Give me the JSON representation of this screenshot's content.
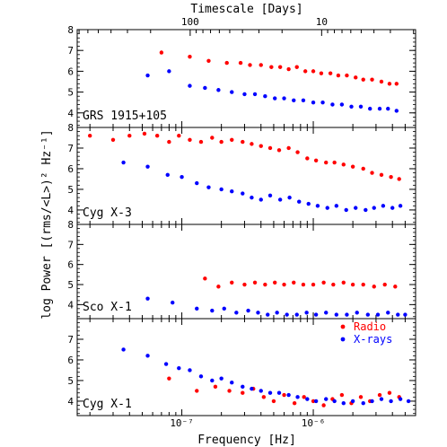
{
  "chart_data": {
    "type": "scatter",
    "xlabel": "Frequency [Hz]",
    "ylabel": "log Power [(rms/<L>)² Hz⁻¹]",
    "x_scale": "log",
    "xlim": [
      1.6e-08,
      6e-06
    ],
    "x_ticks": [
      {
        "value": 1e-07,
        "label": "10⁻⁷"
      },
      {
        "value": 1e-06,
        "label": "10⁻⁶"
      }
    ],
    "top_axis": {
      "label": "Timescale [Days]",
      "ticks": [
        {
          "value": 100,
          "label": "100"
        },
        {
          "value": 10,
          "label": "10"
        }
      ]
    },
    "legend": {
      "placement": "top-right of bottom panel",
      "entries": [
        {
          "name": "Radio",
          "color": "#ff0000"
        },
        {
          "name": "X-rays",
          "color": "#0000ff"
        }
      ]
    },
    "colors": {
      "radio": "#ff0000",
      "xrays": "#0000ff"
    },
    "panels": [
      {
        "label": "GRS 1915+105",
        "ylim": [
          3.3,
          8
        ],
        "y_ticks": [
          4,
          5,
          6,
          7,
          8
        ],
        "series": [
          {
            "name": "Radio",
            "color": "#ff0000",
            "x": [
              7e-08,
              1.15e-07,
              1.6e-07,
              2.2e-07,
              2.8e-07,
              3.3e-07,
              4e-07,
              4.8e-07,
              5.6e-07,
              6.5e-07,
              7.5e-07,
              8.7e-07,
              1e-06,
              1.15e-06,
              1.35e-06,
              1.55e-06,
              1.8e-06,
              2.1e-06,
              2.4e-06,
              2.8e-06,
              3.3e-06,
              3.8e-06,
              4.3e-06
            ],
            "y": [
              6.9,
              6.7,
              6.5,
              6.4,
              6.4,
              6.3,
              6.3,
              6.2,
              6.2,
              6.1,
              6.2,
              6.0,
              6.0,
              5.9,
              5.9,
              5.8,
              5.8,
              5.7,
              5.6,
              5.6,
              5.5,
              5.4,
              5.4
            ]
          },
          {
            "name": "X-rays",
            "color": "#0000ff",
            "x": [
              5.5e-08,
              8e-08,
              1.15e-07,
              1.5e-07,
              1.9e-07,
              2.4e-07,
              3e-07,
              3.6e-07,
              4.3e-07,
              5.1e-07,
              6e-07,
              7.1e-07,
              8.4e-07,
              1e-06,
              1.18e-06,
              1.4e-06,
              1.65e-06,
              1.95e-06,
              2.3e-06,
              2.7e-06,
              3.2e-06,
              3.7e-06,
              4.3e-06
            ],
            "y": [
              5.8,
              6.0,
              5.3,
              5.2,
              5.1,
              5.0,
              4.9,
              4.9,
              4.8,
              4.7,
              4.7,
              4.6,
              4.6,
              4.5,
              4.5,
              4.4,
              4.4,
              4.3,
              4.3,
              4.2,
              4.2,
              4.2,
              4.1
            ]
          }
        ]
      },
      {
        "label": "Cyg X-3",
        "ylim": [
          3.3,
          8
        ],
        "y_ticks": [
          4,
          5,
          6,
          7,
          8
        ],
        "series": [
          {
            "name": "Radio",
            "color": "#ff0000",
            "x": [
              2e-08,
              3e-08,
              4e-08,
              5.2e-08,
              6.5e-08,
              8e-08,
              9.5e-08,
              1.15e-07,
              1.4e-07,
              1.7e-07,
              2e-07,
              2.4e-07,
              2.9e-07,
              3.4e-07,
              4e-07,
              4.7e-07,
              5.5e-07,
              6.5e-07,
              7.6e-07,
              9e-07,
              1.05e-06,
              1.25e-06,
              1.45e-06,
              1.7e-06,
              2e-06,
              2.4e-06,
              2.8e-06,
              3.3e-06,
              3.9e-06,
              4.5e-06
            ],
            "y": [
              7.6,
              7.4,
              7.6,
              7.7,
              7.6,
              7.3,
              7.6,
              7.4,
              7.3,
              7.5,
              7.3,
              7.4,
              7.3,
              7.2,
              7.1,
              7.0,
              6.9,
              7.0,
              6.8,
              6.5,
              6.4,
              6.3,
              6.3,
              6.2,
              6.1,
              6.0,
              5.8,
              5.7,
              5.6,
              5.5
            ]
          },
          {
            "name": "X-rays",
            "color": "#0000ff",
            "x": [
              3.6e-08,
              5.5e-08,
              7.8e-08,
              1e-07,
              1.3e-07,
              1.6e-07,
              2e-07,
              2.4e-07,
              2.9e-07,
              3.4e-07,
              4e-07,
              4.7e-07,
              5.6e-07,
              6.6e-07,
              7.8e-07,
              9.2e-07,
              1.08e-06,
              1.28e-06,
              1.5e-06,
              1.78e-06,
              2.1e-06,
              2.5e-06,
              2.9e-06,
              3.4e-06,
              4e-06,
              4.6e-06
            ],
            "y": [
              6.3,
              6.1,
              5.7,
              5.6,
              5.3,
              5.1,
              5.0,
              4.9,
              4.8,
              4.6,
              4.5,
              4.7,
              4.5,
              4.6,
              4.4,
              4.3,
              4.2,
              4.1,
              4.2,
              4.0,
              4.1,
              4.0,
              4.1,
              4.2,
              4.1,
              4.2
            ]
          }
        ]
      },
      {
        "label": "Sco X-1",
        "ylim": [
          3.3,
          8
        ],
        "y_ticks": [
          4,
          5,
          6,
          7,
          8
        ],
        "series": [
          {
            "name": "Radio",
            "color": "#ff0000",
            "x": [
              1.5e-07,
              1.9e-07,
              2.4e-07,
              3e-07,
              3.6e-07,
              4.3e-07,
              5.1e-07,
              6e-07,
              7.1e-07,
              8.4e-07,
              1e-06,
              1.2e-06,
              1.42e-06,
              1.7e-06,
              2e-06,
              2.4e-06,
              2.9e-06,
              3.5e-06,
              4.2e-06
            ],
            "y": [
              5.3,
              4.9,
              5.1,
              5.0,
              5.1,
              5.0,
              5.1,
              5.0,
              5.1,
              5.0,
              5.0,
              5.1,
              5.0,
              5.1,
              5.0,
              5.0,
              4.9,
              5.0,
              4.9
            ]
          },
          {
            "name": "X-rays",
            "color": "#0000ff",
            "x": [
              5.5e-08,
              8.5e-08,
              1.3e-07,
              1.7e-07,
              2.1e-07,
              2.6e-07,
              3.2e-07,
              3.8e-07,
              4.5e-07,
              5.3e-07,
              6.3e-07,
              7.5e-07,
              8.9e-07,
              1.05e-06,
              1.25e-06,
              1.5e-06,
              1.8e-06,
              2.15e-06,
              2.6e-06,
              3.1e-06,
              3.7e-06,
              4.4e-06,
              5e-06
            ],
            "y": [
              4.3,
              4.1,
              3.8,
              3.7,
              3.8,
              3.6,
              3.7,
              3.6,
              3.5,
              3.6,
              3.5,
              3.5,
              3.6,
              3.5,
              3.6,
              3.5,
              3.5,
              3.6,
              3.5,
              3.5,
              3.6,
              3.5,
              3.5
            ]
          }
        ]
      },
      {
        "label": "Cyg X-1",
        "ylim": [
          3.3,
          8
        ],
        "y_ticks": [
          4,
          5,
          6,
          7
        ],
        "series": [
          {
            "name": "Radio",
            "color": "#ff0000",
            "x": [
              8e-08,
              1.3e-07,
              1.8e-07,
              2.3e-07,
              2.9e-07,
              3.5e-07,
              4.2e-07,
              5e-07,
              6e-07,
              7.2e-07,
              8.5e-07,
              1e-06,
              1.2e-06,
              1.4e-06,
              1.65e-06,
              1.95e-06,
              2.3e-06,
              2.7e-06,
              3.2e-06,
              3.8e-06,
              4.5e-06
            ],
            "y": [
              5.1,
              4.5,
              4.7,
              4.5,
              4.4,
              4.6,
              4.2,
              4.0,
              4.3,
              3.9,
              4.2,
              4.0,
              3.8,
              4.1,
              4.3,
              3.9,
              4.2,
              4.0,
              4.3,
              4.4,
              4.2
            ]
          },
          {
            "name": "X-rays",
            "color": "#0000ff",
            "x": [
              3.6e-08,
              5.5e-08,
              7.6e-08,
              9.5e-08,
              1.15e-07,
              1.4e-07,
              1.7e-07,
              2e-07,
              2.4e-07,
              2.9e-07,
              3.4e-07,
              4e-07,
              4.7e-07,
              5.5e-07,
              6.5e-07,
              7.6e-07,
              9e-07,
              1.05e-06,
              1.25e-06,
              1.45e-06,
              1.7e-06,
              2e-06,
              2.4e-06,
              2.8e-06,
              3.3e-06,
              3.9e-06,
              4.6e-06,
              5.3e-06
            ],
            "y": [
              6.5,
              6.2,
              5.8,
              5.6,
              5.5,
              5.2,
              5.0,
              5.1,
              4.9,
              4.7,
              4.6,
              4.5,
              4.4,
              4.4,
              4.3,
              4.2,
              4.1,
              4.0,
              4.1,
              4.0,
              3.9,
              4.0,
              3.9,
              4.0,
              4.1,
              4.0,
              4.1,
              4.0
            ]
          }
        ]
      }
    ]
  }
}
